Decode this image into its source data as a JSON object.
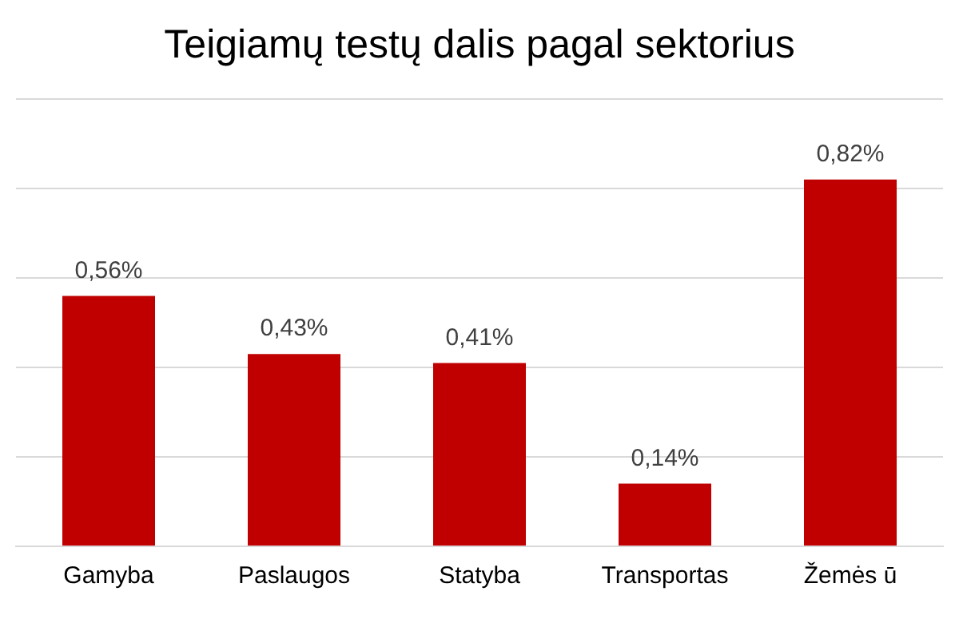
{
  "chart_data": {
    "type": "bar",
    "title": "Teigiamų testų dalis pagal sektorius",
    "categories": [
      "Gamyba",
      "Paslaugos",
      "Statyba",
      "Transportas",
      "Žemės ū"
    ],
    "values": [
      0.56,
      0.43,
      0.41,
      0.14,
      0.82
    ],
    "value_labels": [
      "0,56%",
      "0,43%",
      "0,41%",
      "0,14%",
      "0,82%"
    ],
    "color": "#c00000",
    "ylim": [
      0,
      1
    ],
    "yticks": [
      {
        "value": 0,
        "label": null
      },
      {
        "value": 0.2,
        "label": null
      },
      {
        "value": 0.4,
        "label": null
      },
      {
        "value": 0.6,
        "label": null
      },
      {
        "value": 0.8,
        "label": null
      },
      {
        "value": 1,
        "label": null
      }
    ],
    "grid": "y",
    "tick_labels": "x"
  }
}
